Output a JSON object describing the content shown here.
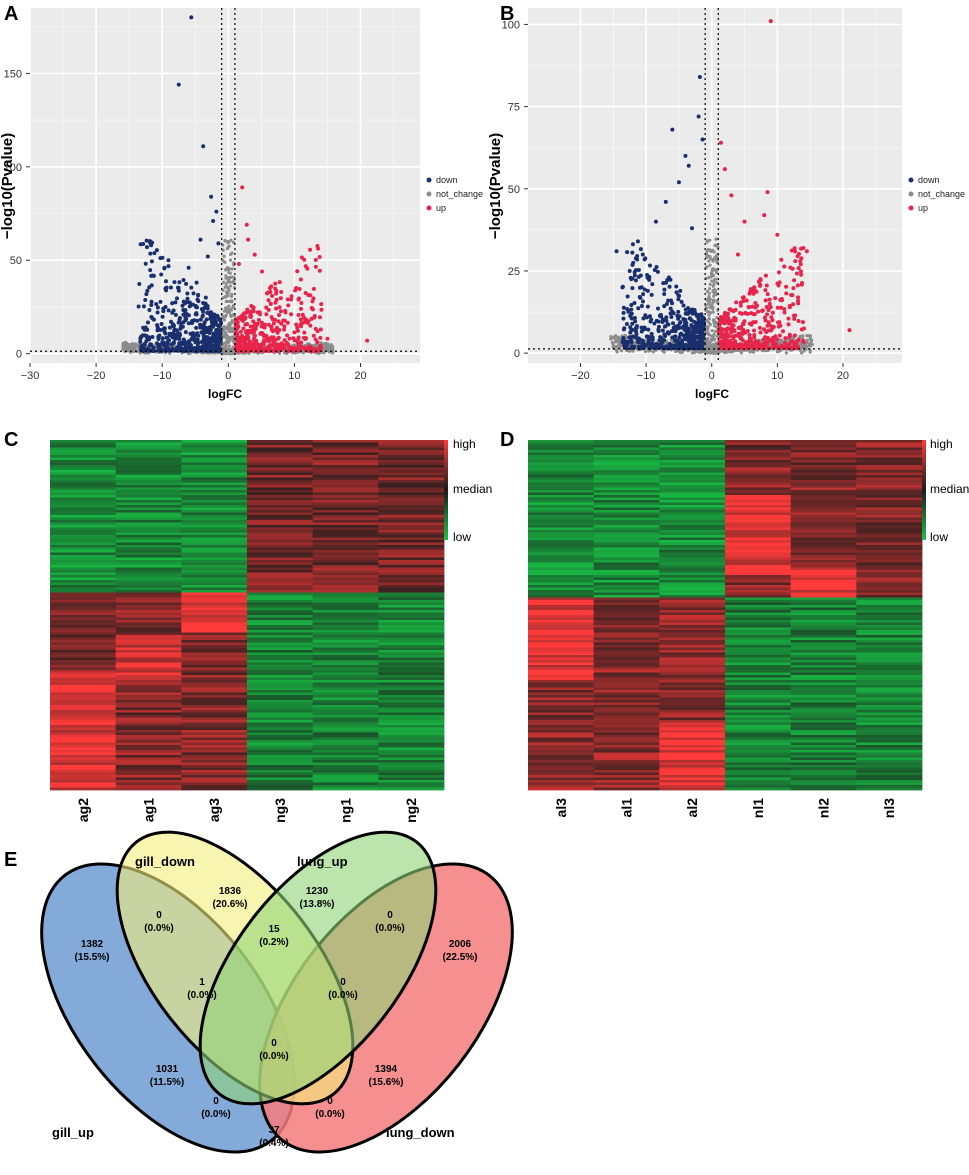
{
  "panels": {
    "A": {
      "label": "A",
      "xlabel": "logFC",
      "ylabel": "−log10(Pvalue)",
      "xticks": [
        "−30",
        "−20",
        "−10",
        "0",
        "10",
        "20"
      ],
      "yticks": [
        "0",
        "50",
        "100",
        "150"
      ],
      "legend": [
        "down",
        "not_change",
        "up"
      ]
    },
    "B": {
      "label": "B",
      "xlabel": "logFC",
      "ylabel": "−log10(Pvalue)",
      "xticks": [
        "−20",
        "−10",
        "0",
        "10",
        "20"
      ],
      "yticks": [
        "0",
        "25",
        "50",
        "75",
        "100"
      ],
      "legend": [
        "down",
        "not_change",
        "up"
      ]
    },
    "C": {
      "label": "C",
      "samples": [
        "ag2",
        "ag1",
        "ag3",
        "ng3",
        "ng1",
        "ng2"
      ],
      "scale": {
        "high": "high",
        "median": "median",
        "low": "low"
      }
    },
    "D": {
      "label": "D",
      "samples": [
        "al3",
        "al1",
        "al2",
        "nl1",
        "nl2",
        "nl3"
      ],
      "scale": {
        "high": "high",
        "median": "median",
        "low": "low"
      }
    },
    "E": {
      "label": "E",
      "sets": [
        "gill_up",
        "gill_down",
        "lung_up",
        "lung_down"
      ],
      "regions": [
        {
          "count": "1836",
          "pct": "(20.6%)"
        },
        {
          "count": "1230",
          "pct": "(13.8%)"
        },
        {
          "count": "1382",
          "pct": "(15.5%)"
        },
        {
          "count": "2006",
          "pct": "(22.5%)"
        },
        {
          "count": "0",
          "pct": "(0.0%)"
        },
        {
          "count": "15",
          "pct": "(0.2%)"
        },
        {
          "count": "0",
          "pct": "(0.0%)"
        },
        {
          "count": "1",
          "pct": "(0.0%)"
        },
        {
          "count": "0",
          "pct": "(0.0%)"
        },
        {
          "count": "0",
          "pct": "(0.0%)"
        },
        {
          "count": "1031",
          "pct": "(11.5%)"
        },
        {
          "count": "1394",
          "pct": "(15.6%)"
        },
        {
          "count": "0",
          "pct": "(0.0%)"
        },
        {
          "count": "0",
          "pct": "(0.0%)"
        },
        {
          "count": "37",
          "pct": "(0.4%)"
        }
      ]
    }
  },
  "colors": {
    "down": "#1a2f6e",
    "not_change": "#8c8c8c",
    "up": "#e8244a",
    "panel_bg": "#ebebeb",
    "venn_gill_up": "#6f9bd3",
    "venn_gill_down": "#f4ee7c",
    "venn_lung_up": "#8fd478",
    "venn_lung_down": "#f47c7c"
  },
  "chart_data": [
    {
      "type": "scatter",
      "title": "A",
      "xlabel": "logFC",
      "ylabel": "-log10(Pvalue)",
      "xlim": [
        -30,
        29
      ],
      "ylim": [
        -5,
        185
      ],
      "thresholds": {
        "logFC": [
          -1,
          1
        ],
        "pvalue_line": 1.3
      },
      "series": [
        {
          "name": "down",
          "x": [
            -5.6,
            -7.5,
            -3.8,
            -2.6,
            -1.8,
            -2.3,
            -4.2,
            -3.1,
            -6.0,
            -1.5,
            -8.5,
            -9.5,
            -10.7,
            -11.5,
            -12.5,
            -13.2,
            -4.8,
            -3.4
          ],
          "y": [
            180,
            144,
            111,
            84,
            76,
            71,
            61,
            52,
            46,
            59,
            27,
            25,
            22,
            19,
            14,
            9,
            38,
            30
          ]
        },
        {
          "name": "not_change",
          "x": [
            -0.6,
            -0.3,
            0.2,
            0.5,
            -0.9,
            0.8
          ],
          "y": [
            10,
            24,
            16,
            28,
            5,
            7
          ]
        },
        {
          "name": "up",
          "x": [
            2.1,
            2.8,
            3.0,
            4.0,
            5.1,
            6.5,
            8.0,
            9.5,
            11.0,
            12.4,
            13.5,
            15.0,
            21.0,
            1.6
          ],
          "y": [
            89,
            69,
            61,
            53,
            44,
            36,
            33,
            29,
            24,
            15,
            12,
            8,
            7,
            48
          ]
        }
      ]
    },
    {
      "type": "scatter",
      "title": "B",
      "xlabel": "logFC",
      "ylabel": "-log10(Pvalue)",
      "xlim": [
        -28,
        29
      ],
      "ylim": [
        -3,
        105
      ],
      "thresholds": {
        "logFC": [
          -1,
          1
        ],
        "pvalue_line": 1.3
      },
      "series": [
        {
          "name": "down",
          "x": [
            -1.8,
            -2.0,
            -6.0,
            -4.0,
            -3.5,
            -1.4,
            -5.0,
            -7.0,
            -8.5,
            -10.5,
            -12.5,
            -13.6,
            -14.5,
            -3.0
          ],
          "y": [
            84,
            72,
            68,
            60,
            57,
            65,
            52,
            46,
            40,
            30,
            25,
            20,
            31,
            38
          ]
        },
        {
          "name": "not_change",
          "x": [
            -0.6,
            -0.2,
            0.3,
            0.7,
            -0.9
          ],
          "y": [
            6,
            14,
            10,
            18,
            4
          ]
        },
        {
          "name": "up",
          "x": [
            9.0,
            1.4,
            2.0,
            3.0,
            5.0,
            8.0,
            8.5,
            10.0,
            12.0,
            13.5,
            14.5,
            21.0,
            6.5,
            4.0
          ],
          "y": [
            101,
            64,
            56,
            48,
            40,
            42,
            49,
            36,
            26,
            28,
            31,
            7,
            20,
            30
          ]
        }
      ]
    },
    {
      "type": "heatmap",
      "title": "C",
      "columns": [
        "ag2",
        "ag1",
        "ag3",
        "ng3",
        "ng1",
        "ng2"
      ],
      "scale": [
        "low",
        "median",
        "high"
      ]
    },
    {
      "type": "heatmap",
      "title": "D",
      "columns": [
        "al3",
        "al1",
        "al2",
        "nl1",
        "nl2",
        "nl3"
      ],
      "scale": [
        "low",
        "median",
        "high"
      ]
    },
    {
      "type": "venn",
      "title": "E",
      "sets": [
        "gill_up",
        "gill_down",
        "lung_up",
        "lung_down"
      ],
      "regions": {
        "gill_down_only": 1836,
        "lung_up_only": 1230,
        "gill_up_only": 1382,
        "lung_down_only": 2006,
        "gill_up&gill_down": 0,
        "gill_down&lung_up": 15,
        "lung_up&lung_down": 0,
        "gill_up&gill_down&lung_up": 1,
        "gill_down&lung_up&lung_down": 0,
        "all_four": 0,
        "gill_up&lung_up": 1031,
        "gill_down&lung_down": 1394,
        "gill_up&gill_down&lung_down": 0,
        "gill_up&lung_up&lung_down": 0,
        "gill_up&lung_down": 37
      }
    }
  ]
}
